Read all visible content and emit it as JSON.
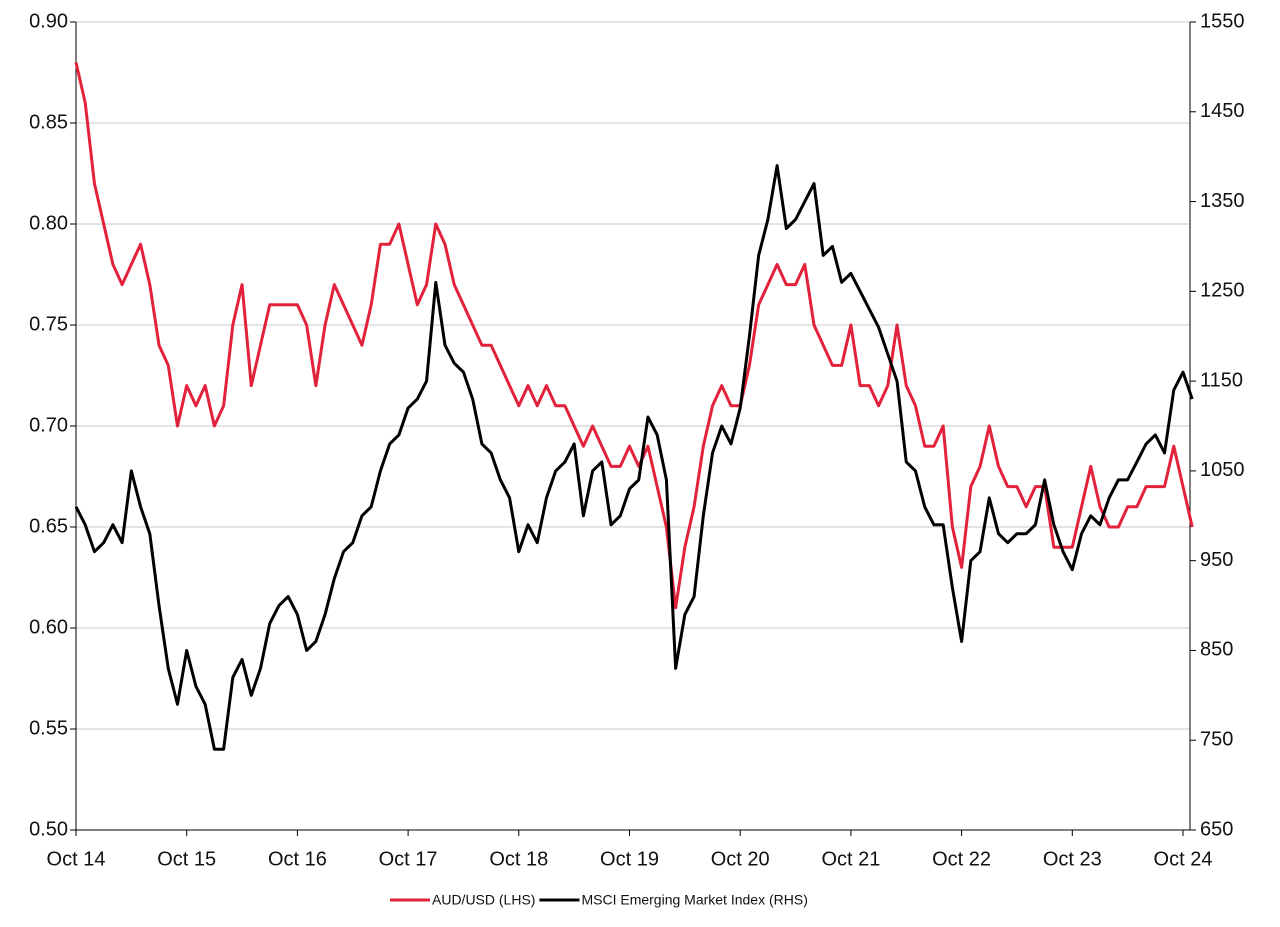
{
  "chart_data": {
    "type": "line",
    "categories": [
      "Oct 14",
      null,
      null,
      null,
      null,
      null,
      null,
      null,
      null,
      null,
      null,
      null,
      "Oct 15",
      null,
      null,
      null,
      null,
      null,
      null,
      null,
      null,
      null,
      null,
      null,
      "Oct 16",
      null,
      null,
      null,
      null,
      null,
      null,
      null,
      null,
      null,
      null,
      null,
      "Oct 17",
      null,
      null,
      null,
      null,
      null,
      null,
      null,
      null,
      null,
      null,
      null,
      "Oct 18",
      null,
      null,
      null,
      null,
      null,
      null,
      null,
      null,
      null,
      null,
      null,
      "Oct 19",
      null,
      null,
      null,
      null,
      null,
      null,
      null,
      null,
      null,
      null,
      null,
      "Oct 20",
      null,
      null,
      null,
      null,
      null,
      null,
      null,
      null,
      null,
      null,
      null,
      "Oct 21",
      null,
      null,
      null,
      null,
      null,
      null,
      null,
      null,
      null,
      null,
      null,
      "Oct 22",
      null,
      null,
      null,
      null,
      null,
      null,
      null,
      null,
      null,
      null,
      null,
      "Oct 23",
      null,
      null,
      null,
      null,
      null,
      null,
      null,
      null,
      null,
      null,
      null,
      "Oct 24",
      null
    ],
    "series": [
      {
        "name": "AUD/USD (LHS)",
        "color": "#e2213b",
        "axis": "y",
        "values": [
          0.88,
          0.86,
          0.82,
          0.8,
          0.78,
          0.77,
          0.78,
          0.79,
          0.77,
          0.74,
          0.73,
          0.7,
          0.72,
          0.71,
          0.72,
          0.7,
          0.71,
          0.75,
          0.77,
          0.72,
          0.74,
          0.76,
          0.76,
          0.76,
          0.76,
          0.75,
          0.72,
          0.75,
          0.77,
          0.76,
          0.75,
          0.74,
          0.76,
          0.79,
          0.79,
          0.8,
          0.78,
          0.76,
          0.77,
          0.8,
          0.79,
          0.77,
          0.76,
          0.75,
          0.74,
          0.74,
          0.73,
          0.72,
          0.71,
          0.72,
          0.71,
          0.72,
          0.71,
          0.71,
          0.7,
          0.69,
          0.7,
          0.69,
          0.68,
          0.68,
          0.69,
          0.68,
          0.69,
          0.67,
          0.65,
          0.61,
          0.64,
          0.66,
          0.69,
          0.71,
          0.72,
          0.71,
          0.71,
          0.73,
          0.76,
          0.77,
          0.78,
          0.77,
          0.77,
          0.78,
          0.75,
          0.74,
          0.73,
          0.73,
          0.75,
          0.72,
          0.72,
          0.71,
          0.72,
          0.75,
          0.72,
          0.71,
          0.69,
          0.69,
          0.7,
          0.65,
          0.63,
          0.67,
          0.68,
          0.7,
          0.68,
          0.67,
          0.67,
          0.66,
          0.67,
          0.67,
          0.64,
          0.64,
          0.64,
          0.66,
          0.68,
          0.66,
          0.65,
          0.65,
          0.66,
          0.66,
          0.67,
          0.67,
          0.67,
          0.69,
          0.67,
          0.65
        ]
      },
      {
        "name": "MSCI Emerging Market Index (RHS)",
        "color": "#000000",
        "axis": "y2",
        "values": [
          1010,
          990,
          960,
          970,
          990,
          970,
          1050,
          1010,
          980,
          900,
          830,
          790,
          850,
          810,
          790,
          740,
          740,
          820,
          840,
          800,
          830,
          880,
          900,
          910,
          890,
          850,
          860,
          890,
          930,
          960,
          970,
          1000,
          1010,
          1050,
          1080,
          1090,
          1120,
          1130,
          1150,
          1260,
          1190,
          1170,
          1160,
          1130,
          1080,
          1070,
          1040,
          1020,
          960,
          990,
          970,
          1020,
          1050,
          1060,
          1080,
          1000,
          1050,
          1060,
          990,
          1000,
          1030,
          1040,
          1110,
          1090,
          1040,
          830,
          890,
          910,
          1000,
          1070,
          1100,
          1080,
          1120,
          1200,
          1290,
          1330,
          1390,
          1320,
          1330,
          1350,
          1370,
          1290,
          1300,
          1260,
          1270,
          1250,
          1230,
          1210,
          1180,
          1150,
          1060,
          1050,
          1010,
          990,
          990,
          920,
          860,
          950,
          960,
          1020,
          980,
          970,
          980,
          980,
          990,
          1040,
          990,
          960,
          940,
          980,
          1000,
          990,
          1020,
          1040,
          1040,
          1060,
          1080,
          1090,
          1070,
          1140,
          1160,
          1130
        ]
      }
    ],
    "ylim": [
      0.5,
      0.9
    ],
    "yticks": [
      {
        "value": 0.5,
        "label": "0.50"
      },
      0.55,
      {
        "value": 0.6,
        "label": "0.60"
      },
      0.65,
      {
        "value": 0.7,
        "label": "0.70"
      },
      0.75,
      {
        "value": 0.8,
        "label": "0.80"
      },
      0.85,
      {
        "value": 0.9,
        "label": "0.90"
      }
    ],
    "y2lim": [
      650,
      1550
    ],
    "y2ticks": [
      650,
      750,
      850,
      950,
      1050,
      1150,
      1250,
      1350,
      1450,
      1550
    ],
    "grid": true,
    "legend": "bottom"
  }
}
